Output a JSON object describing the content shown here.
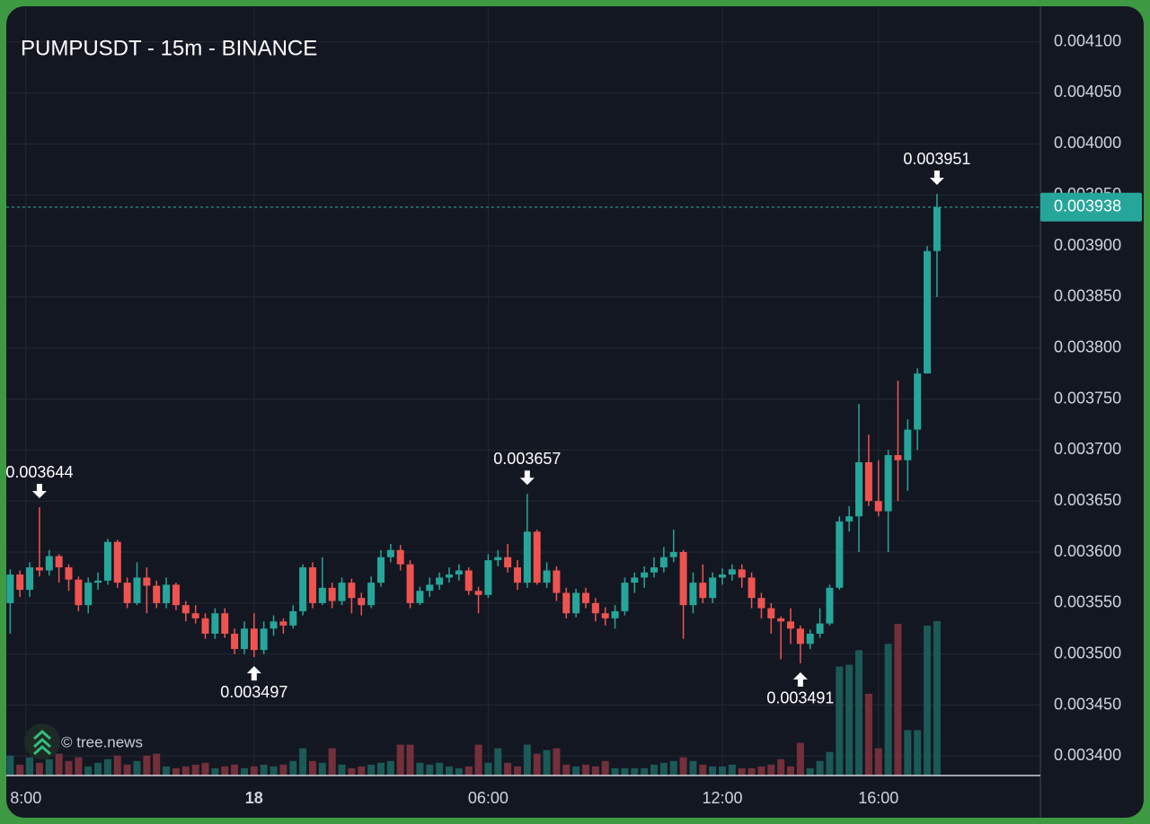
{
  "chart_data": {
    "type": "candlestick",
    "title": "PUMPUSDT - 15m - BINANCE",
    "watermark": "© tree.news",
    "colors": {
      "up": "#26a69a",
      "down": "#ef5350",
      "volume_up": "#1b5a56",
      "volume_down": "#73303a"
    },
    "grid": true,
    "xlim": [
      -0.4,
      105.6
    ],
    "xticks": [
      {
        "value": 1.6,
        "label": "8:00"
      },
      {
        "value": 25,
        "label": "18"
      },
      {
        "value": 49,
        "label": "06:00"
      },
      {
        "value": 73,
        "label": "12:00"
      },
      {
        "value": 89,
        "label": "16:00"
      }
    ],
    "ylim": [
      0.003381,
      0.004134
    ],
    "yticks": [
      {
        "value": 0.0041,
        "label": "0.004100"
      },
      {
        "value": 0.00405,
        "label": "0.004050"
      },
      {
        "value": 0.004,
        "label": "0.004000"
      },
      {
        "value": 0.00395,
        "label": "0.003950"
      },
      {
        "value": 0.0039,
        "label": "0.003900"
      },
      {
        "value": 0.00385,
        "label": "0.003850"
      },
      {
        "value": 0.0038,
        "label": "0.003800"
      },
      {
        "value": 0.00375,
        "label": "0.003750"
      },
      {
        "value": 0.0037,
        "label": "0.003700"
      },
      {
        "value": 0.00365,
        "label": "0.003650"
      },
      {
        "value": 0.0036,
        "label": "0.003600"
      },
      {
        "value": 0.00355,
        "label": "0.003550"
      },
      {
        "value": 0.0035,
        "label": "0.003500"
      },
      {
        "value": 0.00345,
        "label": "0.003450"
      },
      {
        "value": 0.0034,
        "label": "0.003400"
      }
    ],
    "last_price": 0.003938,
    "annotations": [
      {
        "index": 3,
        "at": "high"
      },
      {
        "index": 25,
        "at": "low"
      },
      {
        "index": 53,
        "at": "high"
      },
      {
        "index": 81,
        "at": "low"
      },
      {
        "index": 95,
        "at": "high"
      }
    ],
    "open": [
      0.00355,
      0.003578,
      0.003563,
      0.003585,
      0.003582,
      0.003596,
      0.003585,
      0.003573,
      0.003548,
      0.00357,
      0.003572,
      0.00361,
      0.00357,
      0.00355,
      0.003575,
      0.003567,
      0.00355,
      0.003568,
      0.003548,
      0.00354,
      0.003535,
      0.00352,
      0.00354,
      0.00352,
      0.003505,
      0.003525,
      0.003504,
      0.003525,
      0.003532,
      0.003528,
      0.003542,
      0.003585,
      0.00355,
      0.003565,
      0.003552,
      0.00357,
      0.003555,
      0.003548,
      0.00357,
      0.003595,
      0.003602,
      0.003588,
      0.00355,
      0.003562,
      0.003568,
      0.003575,
      0.003578,
      0.003582,
      0.003562,
      0.003558,
      0.003592,
      0.003595,
      0.003585,
      0.00357,
      0.00362,
      0.00357,
      0.003582,
      0.00356,
      0.00354,
      0.00356,
      0.00355,
      0.00354,
      0.003535,
      0.003542,
      0.00357,
      0.003575,
      0.00358,
      0.003585,
      0.003595,
      0.0036,
      0.003548,
      0.00357,
      0.003555,
      0.003575,
      0.003578,
      0.003583,
      0.003575,
      0.003555,
      0.003545,
      0.003535,
      0.003532,
      0.003525,
      0.00351,
      0.00352,
      0.00353,
      0.003565,
      0.00363,
      0.003635,
      0.003688,
      0.00365,
      0.00364,
      0.003695,
      0.00369,
      0.00372,
      0.003775,
      0.003895
    ],
    "high": [
      0.003583,
      0.003582,
      0.00359,
      0.003644,
      0.003602,
      0.003598,
      0.003588,
      0.003576,
      0.003575,
      0.00358,
      0.003613,
      0.003612,
      0.003575,
      0.00359,
      0.003585,
      0.003572,
      0.003575,
      0.00357,
      0.003552,
      0.003548,
      0.00354,
      0.003545,
      0.003545,
      0.003525,
      0.003532,
      0.00354,
      0.003532,
      0.003538,
      0.003535,
      0.003548,
      0.003588,
      0.00359,
      0.003595,
      0.00357,
      0.003575,
      0.003574,
      0.00356,
      0.003576,
      0.003602,
      0.003608,
      0.003607,
      0.003592,
      0.003566,
      0.003575,
      0.00358,
      0.003585,
      0.003588,
      0.003585,
      0.003566,
      0.003598,
      0.003602,
      0.003608,
      0.003592,
      0.003657,
      0.003622,
      0.00359,
      0.003586,
      0.003565,
      0.003564,
      0.003565,
      0.003555,
      0.003546,
      0.003548,
      0.003575,
      0.00358,
      0.003586,
      0.003595,
      0.003605,
      0.003622,
      0.003602,
      0.00358,
      0.003588,
      0.00358,
      0.003584,
      0.003588,
      0.003588,
      0.00358,
      0.00356,
      0.00355,
      0.003537,
      0.003545,
      0.003528,
      0.003524,
      0.003545,
      0.003568,
      0.003635,
      0.003645,
      0.003745,
      0.003715,
      0.00369,
      0.0037,
      0.003768,
      0.00373,
      0.00378,
      0.0039,
      0.003951
    ],
    "low": [
      0.00352,
      0.003556,
      0.003556,
      0.003576,
      0.003577,
      0.00357,
      0.003562,
      0.003542,
      0.00354,
      0.003563,
      0.003568,
      0.003565,
      0.003545,
      0.003548,
      0.00354,
      0.003545,
      0.003545,
      0.003543,
      0.003532,
      0.00353,
      0.003515,
      0.003515,
      0.003516,
      0.0035,
      0.0035,
      0.003497,
      0.0035,
      0.003518,
      0.00352,
      0.003525,
      0.003538,
      0.003545,
      0.003548,
      0.003545,
      0.003548,
      0.00354,
      0.003538,
      0.003545,
      0.003566,
      0.00359,
      0.003582,
      0.003545,
      0.003548,
      0.003556,
      0.003563,
      0.00357,
      0.003572,
      0.003558,
      0.00354,
      0.003555,
      0.003586,
      0.00358,
      0.003563,
      0.003565,
      0.003568,
      0.003565,
      0.003552,
      0.003535,
      0.003536,
      0.003545,
      0.003532,
      0.003528,
      0.003525,
      0.003538,
      0.00356,
      0.003565,
      0.003575,
      0.00358,
      0.00359,
      0.003515,
      0.00354,
      0.00355,
      0.00355,
      0.003568,
      0.003572,
      0.003565,
      0.003545,
      0.003535,
      0.00352,
      0.003495,
      0.00351,
      0.003491,
      0.003505,
      0.003516,
      0.003528,
      0.003563,
      0.00362,
      0.0036,
      0.003645,
      0.003635,
      0.0036,
      0.00365,
      0.00366,
      0.0037,
      0.003775,
      0.00385
    ],
    "close": [
      0.003578,
      0.003563,
      0.003585,
      0.003582,
      0.003596,
      0.003585,
      0.003573,
      0.003548,
      0.00357,
      0.003572,
      0.00361,
      0.00357,
      0.00355,
      0.003575,
      0.003567,
      0.00355,
      0.003568,
      0.003548,
      0.00354,
      0.003535,
      0.00352,
      0.00354,
      0.00352,
      0.003505,
      0.003525,
      0.003504,
      0.003525,
      0.003532,
      0.003528,
      0.003542,
      0.003585,
      0.00355,
      0.003565,
      0.003552,
      0.00357,
      0.003555,
      0.003548,
      0.00357,
      0.003595,
      0.003602,
      0.003588,
      0.00355,
      0.003562,
      0.003568,
      0.003575,
      0.003578,
      0.003582,
      0.003562,
      0.003558,
      0.003592,
      0.003595,
      0.003585,
      0.00357,
      0.00362,
      0.00357,
      0.003582,
      0.00356,
      0.00354,
      0.00356,
      0.00355,
      0.00354,
      0.003535,
      0.003542,
      0.00357,
      0.003575,
      0.00358,
      0.003585,
      0.003595,
      0.0036,
      0.003548,
      0.00357,
      0.003555,
      0.003575,
      0.003578,
      0.003583,
      0.003575,
      0.003555,
      0.003545,
      0.003535,
      0.003532,
      0.003525,
      0.00351,
      0.00352,
      0.00353,
      0.003565,
      0.00363,
      0.003635,
      0.003688,
      0.00365,
      0.00364,
      0.003695,
      0.00369,
      0.00372,
      0.003775,
      0.003895,
      0.003938
    ],
    "volume": [
      22,
      12,
      20,
      14,
      18,
      24,
      16,
      20,
      10,
      14,
      18,
      22,
      12,
      16,
      22,
      24,
      10,
      8,
      10,
      12,
      14,
      8,
      10,
      12,
      8,
      10,
      12,
      10,
      12,
      16,
      30,
      16,
      14,
      30,
      12,
      8,
      10,
      12,
      14,
      16,
      34,
      34,
      14,
      12,
      14,
      10,
      8,
      10,
      34,
      14,
      30,
      14,
      10,
      34,
      24,
      28,
      30,
      12,
      10,
      12,
      10,
      16,
      8,
      8,
      8,
      8,
      12,
      14,
      16,
      20,
      16,
      12,
      10,
      10,
      12,
      8,
      8,
      10,
      12,
      18,
      10,
      36,
      8,
      16,
      26,
      120,
      122,
      138,
      90,
      30,
      145,
      167,
      50,
      50,
      165,
      170
    ]
  }
}
